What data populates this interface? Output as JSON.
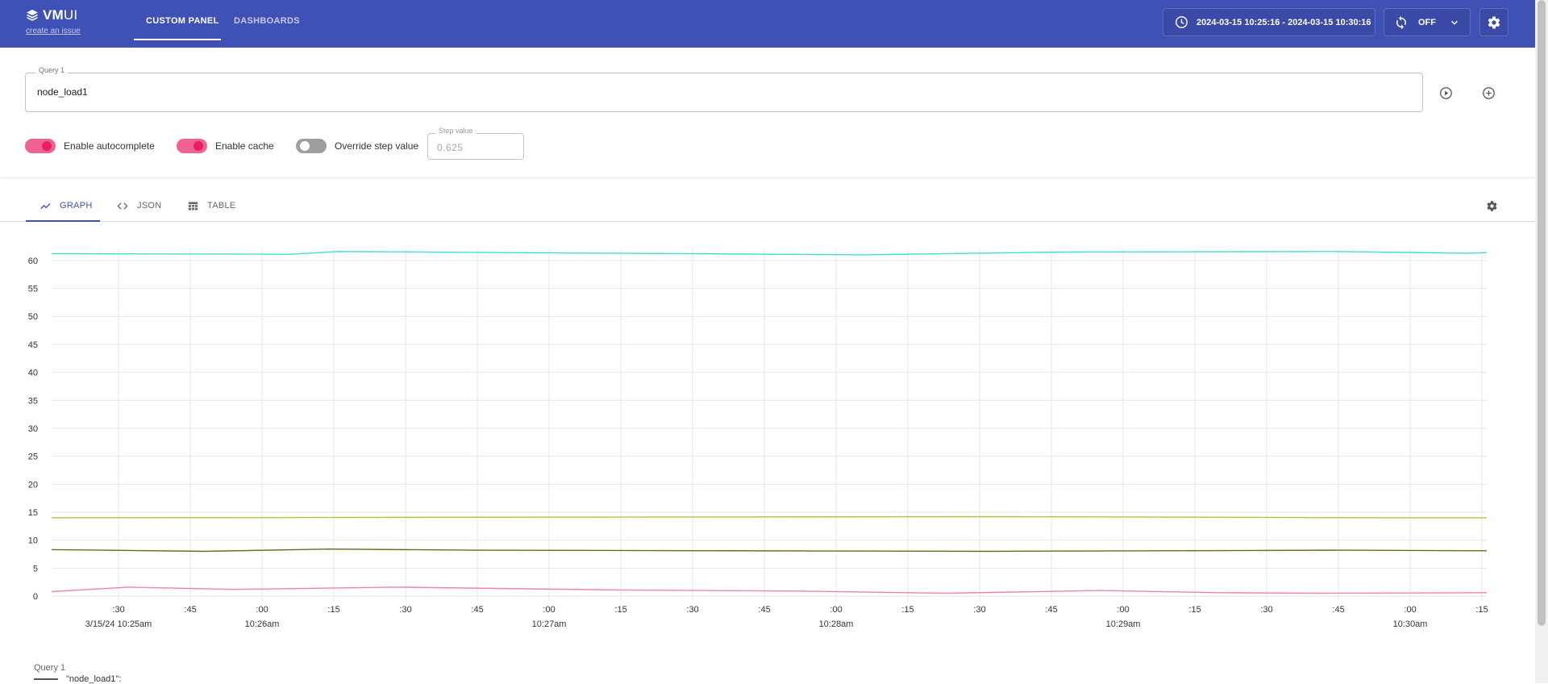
{
  "header": {
    "logo": "VMUI",
    "logo_prefix": "VM",
    "logo_suffix": "UI",
    "issue_link": "create an issue",
    "nav": [
      {
        "label": "CUSTOM PANEL",
        "active": true
      },
      {
        "label": "DASHBOARDS",
        "active": false
      }
    ],
    "time_range": "2024-03-15 10:25:16 - 2024-03-15 10:30:16",
    "refresh": "OFF",
    "icons": {
      "clock": "clock-icon",
      "refresh": "refresh-icon",
      "chevron": "chevron-down-icon",
      "settings": "gear-icon"
    },
    "color": "#3f51b5"
  },
  "query": {
    "label": "Query 1",
    "value": "node_load1",
    "icons": {
      "execute": "play-circle-icon",
      "add": "add-circle-icon"
    }
  },
  "options": {
    "autocomplete": {
      "label": "Enable autocomplete",
      "enabled": true
    },
    "cache": {
      "label": "Enable cache",
      "enabled": true
    },
    "override_step": {
      "label": "Override step value",
      "enabled": false
    },
    "step": {
      "label": "Step value",
      "value": "0.625"
    }
  },
  "tabs": [
    {
      "label": "GRAPH",
      "icon": "line-chart-icon",
      "active": true
    },
    {
      "label": "JSON",
      "icon": "code-icon",
      "active": false
    },
    {
      "label": "TABLE",
      "icon": "table-icon",
      "active": false
    }
  ],
  "chart_data": {
    "type": "line",
    "ylim": [
      0,
      62
    ],
    "yticks": [
      0,
      5,
      10,
      15,
      20,
      25,
      30,
      35,
      40,
      45,
      50,
      55,
      60
    ],
    "xlim": [
      "10:25:16",
      "10:30:16"
    ],
    "xticks": [
      {
        "label": ":30",
        "sub": "3/15/24 10:25am",
        "t": "10:25:30"
      },
      {
        "label": ":45",
        "sub": "",
        "t": "10:25:45"
      },
      {
        "label": ":00",
        "sub": "10:26am",
        "t": "10:26:00"
      },
      {
        "label": ":15",
        "sub": "",
        "t": "10:26:15"
      },
      {
        "label": ":30",
        "sub": "",
        "t": "10:26:30"
      },
      {
        "label": ":45",
        "sub": "",
        "t": "10:26:45"
      },
      {
        "label": ":00",
        "sub": "10:27am",
        "t": "10:27:00"
      },
      {
        "label": ":15",
        "sub": "",
        "t": "10:27:15"
      },
      {
        "label": ":30",
        "sub": "",
        "t": "10:27:30"
      },
      {
        "label": ":45",
        "sub": "",
        "t": "10:27:45"
      },
      {
        "label": ":00",
        "sub": "10:28am",
        "t": "10:28:00"
      },
      {
        "label": ":15",
        "sub": "",
        "t": "10:28:15"
      },
      {
        "label": ":30",
        "sub": "",
        "t": "10:28:30"
      },
      {
        "label": ":45",
        "sub": "",
        "t": "10:28:45"
      },
      {
        "label": ":00",
        "sub": "10:29am",
        "t": "10:29:00"
      },
      {
        "label": ":15",
        "sub": "",
        "t": "10:29:15"
      },
      {
        "label": ":30",
        "sub": "",
        "t": "10:29:30"
      },
      {
        "label": ":45",
        "sub": "",
        "t": "10:29:45"
      },
      {
        "label": ":00",
        "sub": "10:30am",
        "t": "10:30:00"
      },
      {
        "label": ":15",
        "sub": "",
        "t": "10:30:15"
      }
    ],
    "grid": true,
    "series": [
      {
        "color": "#40e0d0",
        "x": [
          "10:25:16",
          "10:26:06",
          "10:26:16",
          "10:27:12",
          "10:28:06",
          "10:28:46",
          "10:29:44",
          "10:30:12",
          "10:30:16"
        ],
        "values": [
          61.2,
          61.1,
          61.6,
          61.3,
          61.0,
          61.5,
          61.6,
          61.3,
          61.4
        ]
      },
      {
        "color": "#b5c334",
        "x": [
          "10:25:16",
          "10:28:33",
          "10:29:56",
          "10:30:16"
        ],
        "values": [
          14.0,
          14.2,
          14.0,
          14.0
        ]
      },
      {
        "color": "#6b6b1a",
        "x": [
          "10:25:16",
          "10:25:48",
          "10:26:14",
          "10:26:44",
          "10:28:32",
          "10:29:45",
          "10:30:16"
        ],
        "values": [
          8.3,
          8.0,
          8.4,
          8.2,
          8.0,
          8.2,
          8.1
        ]
      },
      {
        "color": "#f0879d",
        "x": [
          "10:25:16",
          "10:25:32",
          "10:25:54",
          "10:26:28",
          "10:27:14",
          "10:27:52",
          "10:28:23",
          "10:28:55",
          "10:29:20",
          "10:29:40",
          "10:30:16"
        ],
        "values": [
          0.8,
          1.6,
          1.2,
          1.6,
          1.1,
          0.9,
          0.5,
          1.0,
          0.6,
          0.5,
          0.6
        ]
      }
    ]
  },
  "legend": {
    "title": "Query 1",
    "item": "\"node_load1\":"
  }
}
